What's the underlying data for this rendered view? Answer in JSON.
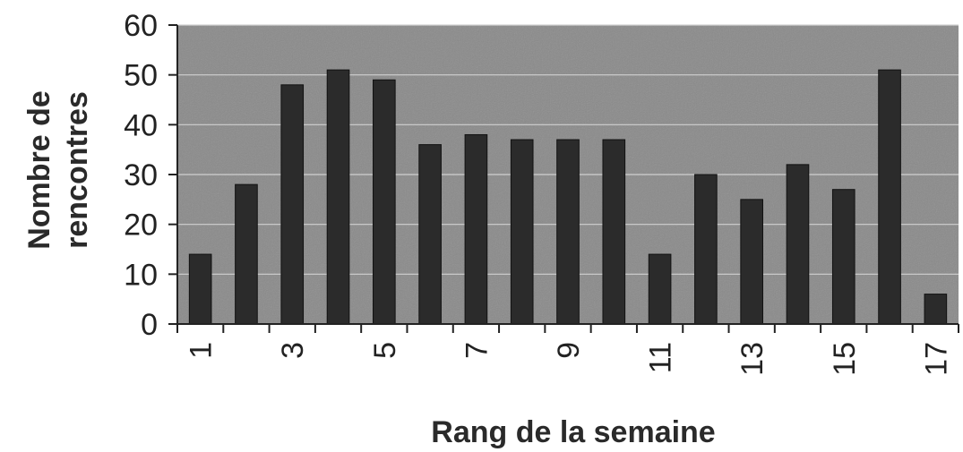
{
  "chart_data": {
    "type": "bar",
    "categories": [
      "1",
      "2",
      "3",
      "4",
      "5",
      "6",
      "7",
      "8",
      "9",
      "10",
      "11",
      "12",
      "13",
      "14",
      "15",
      "16",
      "17"
    ],
    "tick_labels_shown": [
      "1",
      "3",
      "5",
      "7",
      "9",
      "11",
      "13",
      "15",
      "17"
    ],
    "values": [
      14,
      28,
      48,
      51,
      49,
      36,
      38,
      37,
      37,
      37,
      14,
      30,
      25,
      32,
      27,
      51,
      6
    ],
    "title": "",
    "xlabel": "Rang de la semaine",
    "ylabel_lines": [
      "Nombre de",
      "rencontres"
    ],
    "yticks": [
      "0",
      "10",
      "20",
      "30",
      "40",
      "50",
      "60"
    ],
    "ylim": [
      0,
      60
    ],
    "grid": true,
    "colors": {
      "plot_bg": "#8a8a8a",
      "bar": "#2b2b2b",
      "grid": "#d0d0d0"
    }
  }
}
